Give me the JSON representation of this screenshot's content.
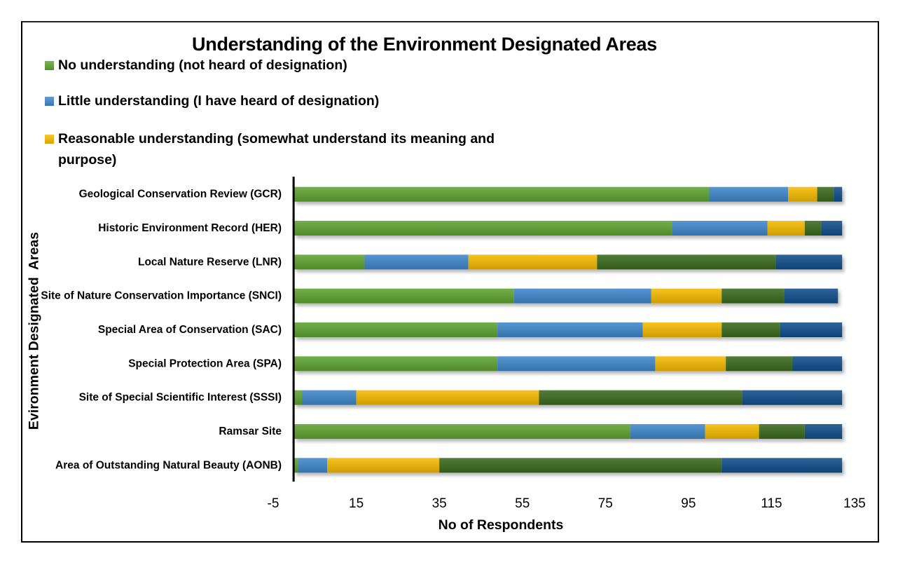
{
  "chart_data": {
    "type": "bar",
    "orientation": "horizontal",
    "stacked": true,
    "title": "Understanding of the Environment Designated Areas",
    "xlabel": "No of Respondents",
    "ylabel": "Evironment Designated  Areas",
    "xlim": [
      -5,
      135
    ],
    "xticks": [
      -5,
      15,
      35,
      55,
      75,
      95,
      115,
      135
    ],
    "grid": false,
    "legend_position": "top-left",
    "categories": [
      "Geological Conservation Review (GCR)",
      "Historic Environment Record (HER)",
      "Local Nature Reserve (LNR)",
      "Site of Nature Conservation Importance (SNCI)",
      "Special Area of Conservation (SAC)",
      "Special Protection Area (SPA)",
      "Site of Special Scientific Interest (SSSI)",
      "Ramsar Site",
      "Area of Outstanding Natural Beauty (AONB)"
    ],
    "series": [
      {
        "name": "No understanding (not heard of designation)",
        "color": "#5fa431",
        "in_legend": true,
        "values": [
          100,
          91,
          17,
          53,
          49,
          49,
          2,
          81,
          1
        ]
      },
      {
        "name": "Little understanding (I have heard of designation)",
        "color": "#3f88cc",
        "in_legend": true,
        "values": [
          19,
          23,
          25,
          33,
          35,
          38,
          13,
          18,
          7
        ]
      },
      {
        "name": "Reasonable understanding (somewhat understand its meaning and purpose)",
        "color": "#f5bb00",
        "in_legend": true,
        "values": [
          7,
          9,
          31,
          17,
          19,
          17,
          44,
          13,
          27
        ]
      },
      {
        "name": "",
        "color": "#3b6a1e",
        "in_legend": false,
        "values": [
          4,
          4,
          43,
          15,
          14,
          16,
          49,
          11,
          68
        ]
      },
      {
        "name": "",
        "color": "#114f8c",
        "in_legend": false,
        "values": [
          2,
          5,
          16,
          13,
          15,
          12,
          24,
          9,
          29
        ]
      }
    ]
  },
  "legend": {
    "items": [
      {
        "label": "No understanding (not heard of designation)",
        "color": "#5fa431"
      },
      {
        "label": "Little understanding (I have heard of designation)",
        "color": "#3f88cc"
      },
      {
        "label": "Reasonable understanding (somewhat understand its meaning and purpose)",
        "color": "#f5bb00"
      }
    ]
  }
}
